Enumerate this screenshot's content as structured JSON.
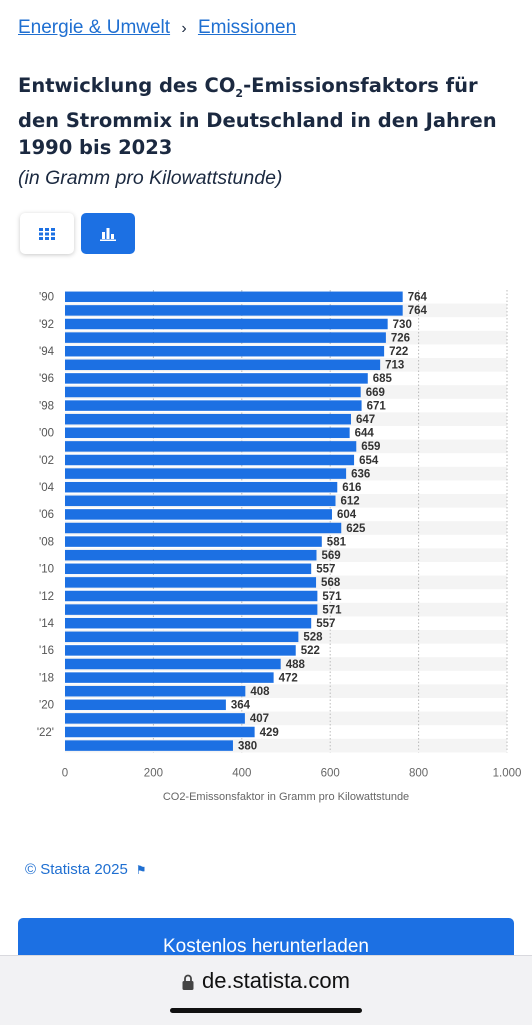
{
  "breadcrumb": {
    "item1": "Energie & Umwelt",
    "separator": "›",
    "item2": "Emissionen"
  },
  "title": {
    "part1": "Entwicklung des CO",
    "sub": "2",
    "part2": "-Emissionsfaktors für den Strommix in Deutschland in den Jahren 1990 bis 2023"
  },
  "subtitle": "(in Gramm pro Kilowattstunde)",
  "view_toggle": {
    "table_icon": "grid-icon",
    "chart_icon": "bar-chart-icon",
    "active": "chart"
  },
  "chart_data": {
    "type": "bar",
    "orientation": "horizontal",
    "categories": [
      "'90",
      "",
      "'92",
      "",
      "'94",
      "",
      "'96",
      "",
      "'98",
      "",
      "'00",
      "",
      "'02",
      "",
      "'04",
      "",
      "'06",
      "",
      "'08",
      "",
      "'10",
      "",
      "'12",
      "",
      "'14",
      "",
      "'16",
      "",
      "'18",
      "",
      "'20",
      "",
      "'22'",
      ""
    ],
    "values": [
      764,
      764,
      730,
      726,
      722,
      713,
      685,
      669,
      671,
      647,
      644,
      659,
      654,
      636,
      616,
      612,
      604,
      625,
      581,
      569,
      557,
      568,
      571,
      571,
      557,
      528,
      522,
      488,
      472,
      408,
      364,
      407,
      429,
      380
    ],
    "xlabel": "CO2-Emissonsfaktor in Gramm pro Kilowattstunde",
    "xlim": [
      0,
      1000
    ],
    "ticks": [
      "0",
      "200",
      "400",
      "600",
      "800",
      "1.000"
    ],
    "tick_values": [
      0,
      200,
      400,
      600,
      800,
      1000
    ],
    "bar_color": "#1c70e3",
    "grid": true
  },
  "footer": {
    "copyright": "© Statista 2025",
    "flag_icon": "flag-icon"
  },
  "download_button": "Kostenlos herunterladen",
  "browser": {
    "url": "de.statista.com",
    "lock_icon": "lock-icon"
  }
}
